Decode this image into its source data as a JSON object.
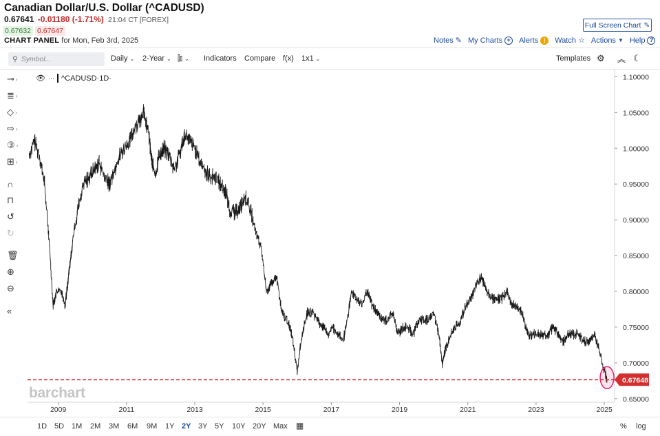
{
  "header": {
    "title": "Canadian Dollar/U.S. Dollar (^CADUSD)",
    "last": "0.67641",
    "change": "-0.01180 (-1.71%)",
    "time": "21:04 CT [FOREX]",
    "bid": "0.67632",
    "ask": "0.67647",
    "panel_label": "CHART PANEL",
    "panel_date": "for Mon, Feb 3rd, 2025"
  },
  "top_links": {
    "fullscreen": "Full Screen Chart",
    "notes": "Notes",
    "my_charts": "My Charts",
    "alerts": "Alerts",
    "watch": "Watch",
    "actions": "Actions",
    "help": "Help"
  },
  "toolbar": {
    "symbol_placeholder": "Symbol...",
    "interval": "Daily",
    "period": "2-Year",
    "indicators": "Indicators",
    "compare": "Compare",
    "fx": "f(x)",
    "layout": "1x1",
    "templates": "Templates"
  },
  "series_label": "^CADUSD",
  "series_interval": "·1D·",
  "watermark": "barchart",
  "current_price_label": "0.67648",
  "range_buttons": [
    "1D",
    "5D",
    "1M",
    "2M",
    "3M",
    "6M",
    "9M",
    "1Y",
    "2Y",
    "3Y",
    "5Y",
    "10Y",
    "20Y",
    "Max"
  ],
  "active_range": "2Y",
  "bottom_right": {
    "percent": "%",
    "log": "log"
  },
  "colors": {
    "accent": "#1d4a9c",
    "down": "#c62828",
    "up": "#2e7d32",
    "price_line": "#d32f2f"
  },
  "chart_data": {
    "type": "line",
    "title": "",
    "xlabel": "",
    "ylabel": "",
    "x_ticks": [
      "2009",
      "2011",
      "2013",
      "2015",
      "2017",
      "2019",
      "2021",
      "2023",
      "2025"
    ],
    "y_ticks": [
      "1.10000",
      "1.05000",
      "1.00000",
      "0.95000",
      "0.90000",
      "0.85000",
      "0.80000",
      "0.75000",
      "0.70000",
      "0.65000"
    ],
    "ylim": [
      0.645,
      1.11
    ],
    "xlim": [
      2008.1,
      2025.3
    ],
    "current_price": 0.67648,
    "series": [
      {
        "x": [
          2008.15,
          2008.3,
          2008.45,
          2008.6,
          2008.75,
          2008.85,
          2008.95,
          2009.1,
          2009.2,
          2009.3,
          2009.45,
          2009.6,
          2009.75,
          2009.9,
          2010.05,
          2010.2,
          2010.35,
          2010.5,
          2010.65,
          2010.8,
          2010.95,
          2011.1,
          2011.25,
          2011.4,
          2011.5,
          2011.65,
          2011.75,
          2011.85,
          2011.95,
          2012.1,
          2012.25,
          2012.4,
          2012.55,
          2012.7,
          2012.85,
          2013.0,
          2013.15,
          2013.3,
          2013.45,
          2013.6,
          2013.75,
          2013.9,
          2014.05,
          2014.2,
          2014.35,
          2014.5,
          2014.65,
          2014.8,
          2014.95,
          2015.1,
          2015.25,
          2015.4,
          2015.55,
          2015.7,
          2015.85,
          2016.0,
          2016.15,
          2016.3,
          2016.45,
          2016.6,
          2016.75,
          2016.9,
          2017.05,
          2017.2,
          2017.35,
          2017.5,
          2017.6,
          2017.75,
          2017.9,
          2018.05,
          2018.2,
          2018.35,
          2018.5,
          2018.65,
          2018.8,
          2018.95,
          2019.1,
          2019.25,
          2019.4,
          2019.55,
          2019.7,
          2019.85,
          2020.0,
          2020.15,
          2020.25,
          2020.35,
          2020.5,
          2020.65,
          2020.8,
          2020.95,
          2021.1,
          2021.25,
          2021.4,
          2021.55,
          2021.7,
          2021.85,
          2022.0,
          2022.15,
          2022.3,
          2022.45,
          2022.6,
          2022.75,
          2022.9,
          2023.05,
          2023.2,
          2023.35,
          2023.5,
          2023.65,
          2023.8,
          2023.95,
          2024.1,
          2024.25,
          2024.4,
          2024.55,
          2024.7,
          2024.85,
          2025.0,
          2025.08
        ],
        "y": [
          0.99,
          1.01,
          0.99,
          0.95,
          0.86,
          0.78,
          0.8,
          0.8,
          0.78,
          0.82,
          0.88,
          0.92,
          0.95,
          0.96,
          0.97,
          0.98,
          0.96,
          0.95,
          0.97,
          0.99,
          1.0,
          1.01,
          1.03,
          1.04,
          1.05,
          1.02,
          0.98,
          0.96,
          0.99,
          1.0,
          0.99,
          0.97,
          0.99,
          1.02,
          1.01,
          1.0,
          0.98,
          0.97,
          0.96,
          0.96,
          0.95,
          0.94,
          0.91,
          0.91,
          0.92,
          0.93,
          0.91,
          0.88,
          0.86,
          0.8,
          0.81,
          0.82,
          0.77,
          0.76,
          0.74,
          0.69,
          0.74,
          0.77,
          0.77,
          0.76,
          0.75,
          0.74,
          0.75,
          0.74,
          0.73,
          0.77,
          0.8,
          0.79,
          0.78,
          0.8,
          0.78,
          0.77,
          0.76,
          0.76,
          0.77,
          0.74,
          0.75,
          0.75,
          0.74,
          0.76,
          0.76,
          0.76,
          0.77,
          0.74,
          0.7,
          0.72,
          0.74,
          0.75,
          0.76,
          0.78,
          0.79,
          0.81,
          0.82,
          0.8,
          0.79,
          0.79,
          0.79,
          0.8,
          0.78,
          0.78,
          0.77,
          0.74,
          0.74,
          0.74,
          0.74,
          0.74,
          0.75,
          0.74,
          0.73,
          0.74,
          0.74,
          0.74,
          0.73,
          0.73,
          0.74,
          0.72,
          0.69,
          0.676
        ]
      }
    ]
  }
}
